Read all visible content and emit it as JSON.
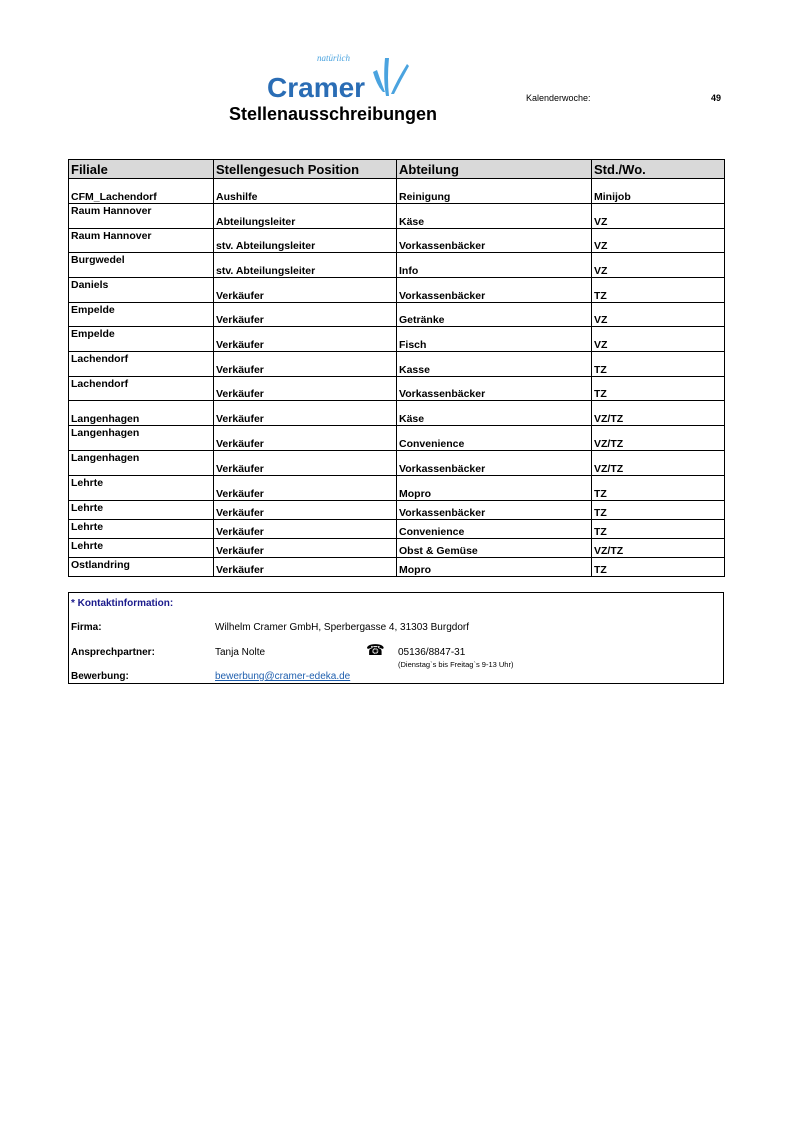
{
  "header": {
    "logo_text": "Cramer",
    "logo_tagline": "natürlich",
    "kw_label": "Kalenderwoche:",
    "kw_value": "49",
    "title": "Stellenausschreibungen"
  },
  "table": {
    "columns": [
      "Filiale",
      "Stellengesuch Position",
      "Abteilung",
      "Std./Wo."
    ],
    "rows": [
      [
        "CFM_Lachendorf",
        "Aushilfe",
        "Reinigung",
        "Minijob"
      ],
      [
        "Raum Hannover",
        "Abteilungsleiter",
        "Käse",
        "VZ"
      ],
      [
        "Raum Hannover",
        "stv. Abteilungsleiter",
        "Vorkassenbäcker",
        "VZ"
      ],
      [
        "Burgwedel",
        "stv. Abteilungsleiter",
        "Info",
        "VZ"
      ],
      [
        "Daniels",
        "Verkäufer",
        "Vorkassenbäcker",
        "TZ"
      ],
      [
        "Empelde",
        "Verkäufer",
        "Getränke",
        "VZ"
      ],
      [
        "Empelde",
        "Verkäufer",
        "Fisch",
        "VZ"
      ],
      [
        "Lachendorf",
        "Verkäufer",
        "Kasse",
        "TZ"
      ],
      [
        "Lachendorf",
        "Verkäufer",
        "Vorkassenbäcker",
        "TZ"
      ],
      [
        "Langenhagen",
        "Verkäufer",
        "Käse",
        "VZ/TZ"
      ],
      [
        "Langenhagen",
        "Verkäufer",
        "Convenience",
        "VZ/TZ"
      ],
      [
        "Langenhagen",
        "Verkäufer",
        "Vorkassenbäcker",
        "VZ/TZ"
      ],
      [
        "Lehrte",
        "Verkäufer",
        "Mopro",
        "TZ"
      ],
      [
        "Lehrte",
        "Verkäufer",
        "Vorkassenbäcker",
        "TZ"
      ],
      [
        "Lehrte",
        "Verkäufer",
        "Convenience",
        "TZ"
      ],
      [
        "Lehrte",
        "Verkäufer",
        "Obst & Gemüse",
        "VZ/TZ"
      ],
      [
        "Ostlandring",
        "Verkäufer",
        "Mopro",
        "TZ"
      ]
    ]
  },
  "contact": {
    "heading": "* Kontaktinformation:",
    "heading_color": "#1a1a8c",
    "firma_label": "Firma:",
    "firma_value": "Wilhelm Cramer GmbH, Sperbergasse 4, 31303 Burgdorf",
    "ansprech_label": "Ansprechpartner:",
    "ansprech_value": "Tanja Nolte",
    "phone_icon": "telephone-icon",
    "phone": "05136/8847-31",
    "hours": "(Dienstag`s bis Freitag`s 9-13 Uhr)",
    "bewerbung_label": "Bewerbung:",
    "email": "bewerbung@cramer-edeka.de"
  }
}
